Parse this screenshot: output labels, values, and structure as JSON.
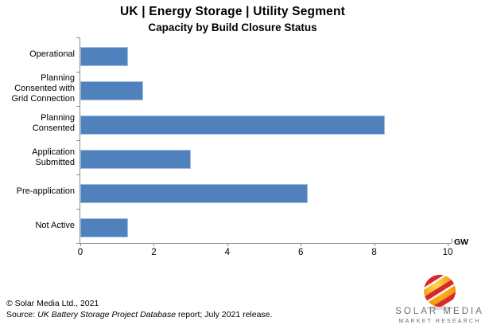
{
  "title": "UK | Energy Storage | Utility Segment",
  "subtitle": "Capacity by Build Closure Status",
  "chart_data": {
    "type": "bar",
    "orientation": "horizontal",
    "title": "UK | Energy Storage | Utility Segment",
    "subtitle": "Capacity by Build Closure Status",
    "categories": [
      "Operational",
      "Planning Consented with Grid Connection",
      "Planning Consented",
      "Application Submitted",
      "Pre-application",
      "Not Active"
    ],
    "display_labels": [
      "Operational",
      "Planning\nConsented with\nGrid Connection",
      "Planning\nConsented",
      "Application\nSubmitted",
      "Pre-application",
      "Not Active"
    ],
    "values": [
      1.3,
      1.7,
      8.3,
      3.0,
      6.2,
      1.3
    ],
    "xlabel": "GW",
    "ylabel": "",
    "xlim": [
      0,
      10
    ],
    "xticks": [
      0,
      2,
      4,
      6,
      8,
      10
    ],
    "grid": false,
    "legend": false,
    "bar_color": "#4F81BD",
    "bar_border_color": "#A3BEDE",
    "axis_color": "#8C8C8C"
  },
  "footer": {
    "copyright": "© Solar Media Ltd., 2021",
    "source_prefix": "Source: ",
    "source_italic": "UK Battery Storage Project Database",
    "source_suffix": " report; July 2021 release."
  },
  "logo": {
    "name": "SOLAR MEDIA",
    "tagline": "MARKET RESEARCH"
  }
}
